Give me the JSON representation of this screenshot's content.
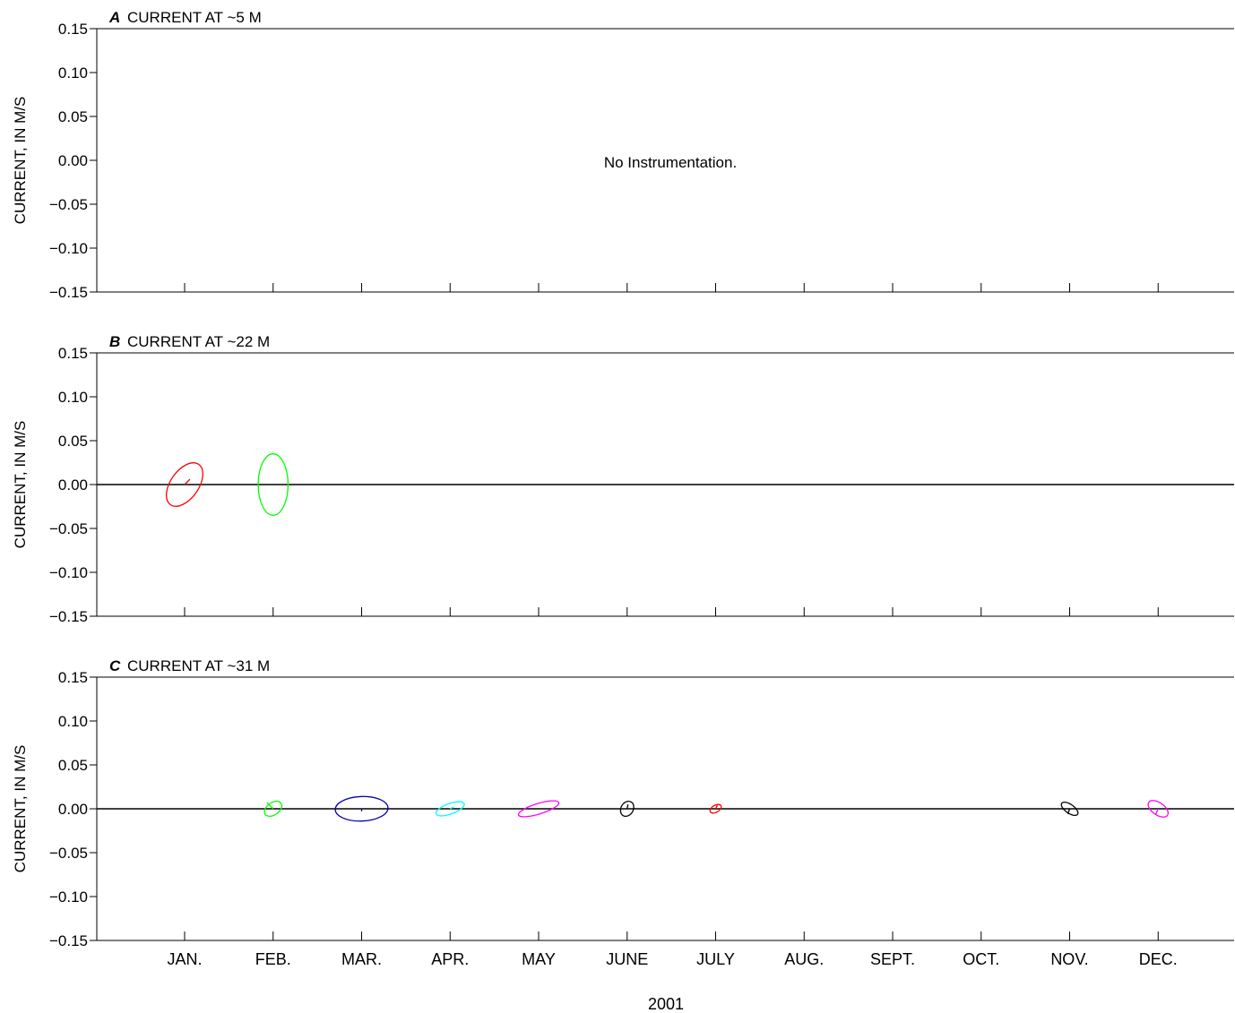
{
  "chart_data": [
    {
      "type": "scatter",
      "panel_letter": "A",
      "title": "CURRENT AT ~5 M",
      "ylabel": "CURRENT, IN M/S",
      "ylim": [
        -0.15,
        0.15
      ],
      "yticks": [
        "0.15",
        "0.10",
        "0.05",
        "0.00",
        "−0.05",
        "−0.10",
        "−0.15"
      ],
      "annotation": "No Instrumentation.",
      "zero_line": false,
      "ellipses": []
    },
    {
      "type": "scatter",
      "panel_letter": "B",
      "title": "CURRENT AT ~22 M",
      "ylabel": "CURRENT, IN M/S",
      "ylim": [
        -0.15,
        0.15
      ],
      "yticks": [
        "0.15",
        "0.10",
        "0.05",
        "0.00",
        "−0.05",
        "−0.10",
        "−0.15"
      ],
      "zero_line": true,
      "ellipses": [
        {
          "month": "JAN.",
          "color": "#ff0000",
          "semi_major": 0.028,
          "semi_minor": 0.016,
          "angle": -55,
          "mean_u": 0.006,
          "mean_v": 0.006
        },
        {
          "month": "FEB.",
          "color": "#00ff00",
          "semi_major": 0.035,
          "semi_minor": 0.017,
          "angle": -90,
          "mean_u": 0.0,
          "mean_v": 0.0
        }
      ]
    },
    {
      "type": "scatter",
      "panel_letter": "C",
      "title": "CURRENT AT ~31 M",
      "ylabel": "CURRENT, IN M/S",
      "ylim": [
        -0.15,
        0.15
      ],
      "yticks": [
        "0.15",
        "0.10",
        "0.05",
        "0.00",
        "−0.05",
        "−0.10",
        "−0.15"
      ],
      "zero_line": true,
      "ellipses": [
        {
          "month": "FEB.",
          "color": "#00ff00",
          "semi_major": 0.011,
          "semi_minor": 0.007,
          "angle": -35,
          "mean_u": -0.007,
          "mean_v": 0.007
        },
        {
          "month": "MAR.",
          "color": "#0000aa",
          "semi_major": 0.03,
          "semi_minor": 0.014,
          "angle": -2,
          "mean_u": 0.0,
          "mean_v": -0.003
        },
        {
          "month": "APR.",
          "color": "#00ffff",
          "semi_major": 0.017,
          "semi_minor": 0.006,
          "angle": -20,
          "mean_u": 0.004,
          "mean_v": 0.002
        },
        {
          "month": "MAY",
          "color": "#ff00ff",
          "semi_major": 0.024,
          "semi_minor": 0.006,
          "angle": -17,
          "mean_u": 0.0,
          "mean_v": 0.0
        },
        {
          "month": "JUNE",
          "color": "#000000",
          "semi_major": 0.009,
          "semi_minor": 0.007,
          "angle": -60,
          "mean_u": 0.001,
          "mean_v": 0.005
        },
        {
          "month": "JULY",
          "color": "#ff0000",
          "semi_major": 0.007,
          "semi_minor": 0.004,
          "angle": -30,
          "mean_u": 0.002,
          "mean_v": 0.004
        },
        {
          "month": "NOV.",
          "color": "#000000",
          "semi_major": 0.011,
          "semi_minor": 0.005,
          "angle": 35,
          "mean_u": -0.002,
          "mean_v": -0.006
        },
        {
          "month": "DEC.",
          "color": "#ff00ff",
          "semi_major": 0.013,
          "semi_minor": 0.007,
          "angle": 35,
          "mean_u": -0.003,
          "mean_v": -0.007
        }
      ]
    }
  ],
  "x_categories": [
    "JAN.",
    "FEB.",
    "MAR.",
    "APR.",
    "MAY",
    "JUNE",
    "JULY",
    "AUG.",
    "SEPT.",
    "OCT.",
    "NOV.",
    "DEC."
  ],
  "xlabel": "2001"
}
